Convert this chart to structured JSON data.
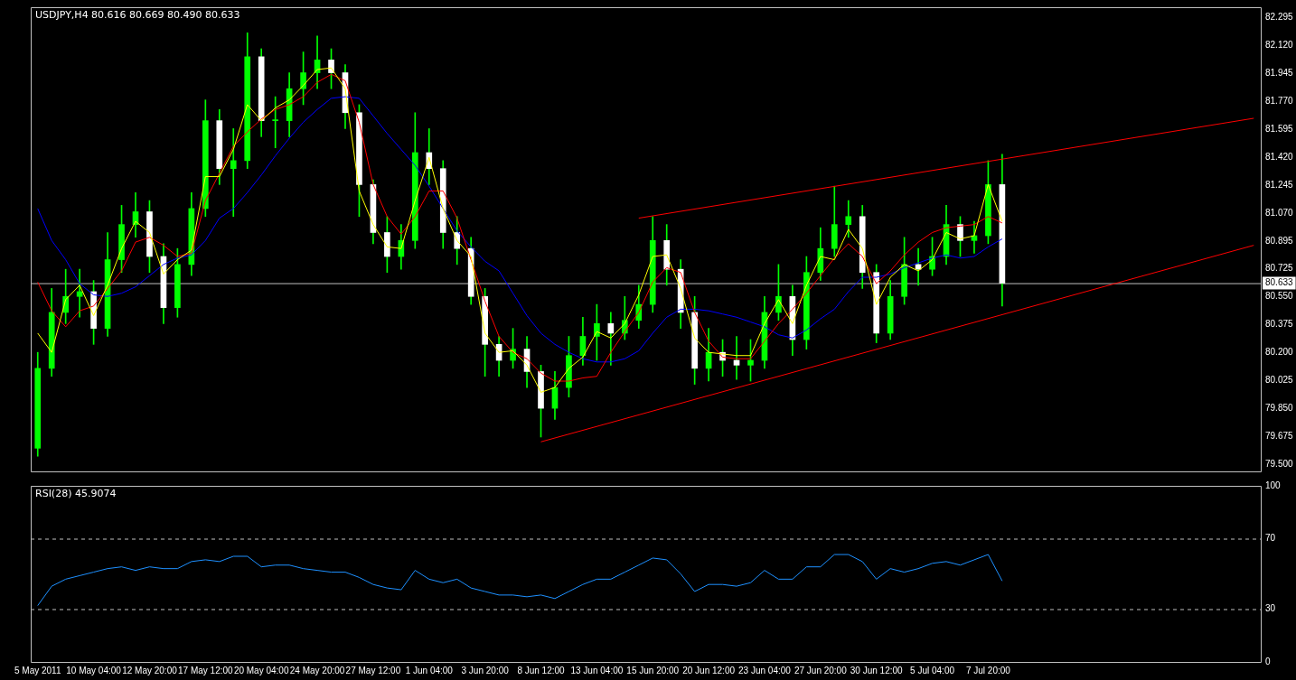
{
  "chart_data": [
    {
      "type": "candlestick",
      "title": "USDJPY,H4 80.616 80.669 80.490 80.633",
      "color": "#00ff00",
      "colors": [
        "#00ff00",
        "#00ff00",
        "#00ff00",
        "#00ff00",
        "#ffffff",
        "#00ff00",
        "#00ff00",
        "#00ff00",
        "#ffffff",
        "#ffffff",
        "#00ff00",
        "#00ff00",
        "#00ff00",
        "#ffffff",
        "#00ff00",
        "#00ff00",
        "#ffffff",
        "#00ff00",
        "#00ff00",
        "#00ff00",
        "#00ff00",
        "#ffffff",
        "#ffffff",
        "#ffffff",
        "#ffffff",
        "#ffffff",
        "#00ff00",
        "#00ff00",
        "#ffffff",
        "#ffffff",
        "#ffffff",
        "#ffffff",
        "#ffffff",
        "#ffffff",
        "#00ff00",
        "#ffffff",
        "#ffffff",
        "#00ff00",
        "#00ff00",
        "#00ff00",
        "#00ff00",
        "#ffffff",
        "#00ff00",
        "#00ff00",
        "#00ff00",
        "#ffffff",
        "#ffffff",
        "#ffffff",
        "#00ff00",
        "#ffffff",
        "#ffffff",
        "#00ff00",
        "#00ff00",
        "#00ff00",
        "#ffffff",
        "#00ff00",
        "#00ff00",
        "#00ff00",
        "#00ff00",
        "#ffffff",
        "#ffffff",
        "#00ff00",
        "#00ff00",
        "#ffffff",
        "#00ff00",
        "#00ff00",
        "#ffffff",
        "#00ff00",
        "#00ff00",
        "#ffffff",
        null,
        null,
        null,
        null,
        null,
        null,
        null,
        null,
        null,
        null,
        null,
        null,
        null,
        null,
        null,
        null,
        null,
        null
      ],
      "tick_labels": "y",
      "legend": false,
      "grid": false,
      "ylim": [
        79.455,
        82.36
      ],
      "yticks": [
        {
          "value": 79.5,
          "label": "79.500"
        },
        {
          "value": 79.675,
          "label": "79.675"
        },
        {
          "value": 79.85,
          "label": "79.850"
        },
        {
          "value": 80.025,
          "label": "80.025"
        },
        {
          "value": 80.2,
          "label": "80.200"
        },
        {
          "value": 80.375,
          "label": "80.375"
        },
        {
          "value": 80.55,
          "label": "80.550"
        },
        {
          "value": 80.725,
          "label": "80.725"
        },
        {
          "value": 80.895,
          "label": "80.895"
        },
        {
          "value": 81.07,
          "label": "81.070"
        },
        {
          "value": 81.245,
          "label": "81.245"
        },
        {
          "value": 81.42,
          "label": "81.420"
        },
        {
          "value": 81.595,
          "label": "81.595"
        },
        {
          "value": 81.77,
          "label": "81.770"
        },
        {
          "value": 81.945,
          "label": "81.945"
        },
        {
          "value": 82.12,
          "label": "82.120"
        },
        {
          "value": 82.295,
          "label": "82.295"
        }
      ],
      "categories": [
        null,
        null,
        null,
        null,
        null,
        null,
        null,
        null,
        null,
        null,
        null,
        null,
        null,
        null,
        null,
        null,
        null,
        null,
        null,
        null,
        null,
        null,
        null,
        null,
        null,
        null,
        null,
        null,
        null,
        null,
        null,
        null,
        null,
        null,
        null,
        null,
        null,
        null,
        null,
        null,
        null,
        null,
        null,
        null,
        null,
        null,
        null,
        null,
        null,
        null,
        null,
        null,
        null,
        null,
        null,
        null,
        null,
        null,
        null,
        null,
        null,
        null,
        null,
        null,
        null,
        null,
        null,
        null,
        null,
        null,
        null,
        null,
        null,
        null,
        null,
        null,
        null,
        null,
        null,
        null,
        null,
        null,
        null,
        null,
        null,
        null,
        null,
        null
      ],
      "ohlc": [
        [
          79.6,
          80.2,
          79.55,
          80.1
        ],
        [
          80.1,
          80.6,
          80.05,
          80.45
        ],
        [
          80.45,
          80.72,
          80.38,
          80.55
        ],
        [
          80.55,
          80.72,
          80.42,
          80.58
        ],
        [
          80.58,
          80.65,
          80.25,
          80.35
        ],
        [
          80.35,
          80.95,
          80.3,
          80.78
        ],
        [
          80.78,
          81.12,
          80.7,
          81.0
        ],
        [
          81.0,
          81.2,
          80.92,
          81.08
        ],
        [
          81.08,
          81.15,
          80.7,
          80.8
        ],
        [
          80.8,
          80.88,
          80.38,
          80.48
        ],
        [
          80.48,
          80.85,
          80.42,
          80.75
        ],
        [
          80.75,
          81.2,
          80.68,
          81.1
        ],
        [
          81.1,
          81.78,
          81.05,
          81.65
        ],
        [
          81.65,
          81.72,
          81.25,
          81.35
        ],
        [
          81.35,
          81.6,
          81.05,
          81.4
        ],
        [
          81.4,
          82.2,
          81.35,
          82.05
        ],
        [
          82.05,
          82.1,
          81.55,
          81.65
        ],
        [
          81.65,
          81.8,
          81.48,
          81.65
        ],
        [
          81.65,
          81.95,
          81.55,
          81.85
        ],
        [
          81.85,
          82.08,
          81.75,
          81.95
        ],
        [
          81.95,
          82.18,
          81.85,
          82.03
        ],
        [
          82.03,
          82.1,
          81.85,
          81.95
        ],
        [
          81.95,
          82.0,
          81.6,
          81.7
        ],
        [
          81.7,
          81.75,
          81.05,
          81.25
        ],
        [
          81.25,
          81.28,
          80.88,
          80.95
        ],
        [
          80.95,
          81.05,
          80.7,
          80.8
        ],
        [
          80.8,
          81.0,
          80.72,
          80.9
        ],
        [
          80.9,
          81.7,
          80.85,
          81.45
        ],
        [
          81.45,
          81.6,
          81.25,
          81.35
        ],
        [
          81.35,
          81.4,
          80.85,
          80.95
        ],
        [
          80.95,
          81.05,
          80.75,
          80.85
        ],
        [
          80.85,
          80.92,
          80.5,
          80.55
        ],
        [
          80.55,
          80.6,
          80.05,
          80.25
        ],
        [
          80.25,
          80.3,
          80.05,
          80.15
        ],
        [
          80.15,
          80.35,
          80.1,
          80.22
        ],
        [
          80.22,
          80.3,
          79.98,
          80.08
        ],
        [
          80.08,
          80.12,
          79.67,
          79.85
        ],
        [
          79.85,
          80.08,
          79.78,
          79.98
        ],
        [
          79.98,
          80.3,
          79.92,
          80.18
        ],
        [
          80.18,
          80.42,
          80.12,
          80.3
        ],
        [
          80.3,
          80.5,
          80.15,
          80.38
        ],
        [
          80.38,
          80.45,
          80.12,
          80.32
        ],
        [
          80.32,
          80.55,
          80.28,
          80.4
        ],
        [
          80.4,
          80.62,
          80.35,
          80.5
        ],
        [
          80.5,
          81.05,
          80.45,
          80.9
        ],
        [
          80.9,
          81.0,
          80.62,
          80.72
        ],
        [
          80.72,
          80.78,
          80.35,
          80.45
        ],
        [
          80.45,
          80.55,
          80.0,
          80.1
        ],
        [
          80.1,
          80.35,
          80.02,
          80.2
        ],
        [
          80.2,
          80.28,
          80.05,
          80.15
        ],
        [
          80.15,
          80.3,
          80.03,
          80.12
        ],
        [
          80.12,
          80.28,
          80.02,
          80.15
        ],
        [
          80.15,
          80.55,
          80.1,
          80.45
        ],
        [
          80.45,
          80.75,
          80.4,
          80.55
        ],
        [
          80.55,
          80.62,
          80.18,
          80.28
        ],
        [
          80.28,
          80.8,
          80.22,
          80.7
        ],
        [
          80.7,
          80.98,
          80.65,
          80.85
        ],
        [
          80.85,
          81.24,
          80.8,
          81.0
        ],
        [
          81.0,
          81.15,
          80.92,
          81.05
        ],
        [
          81.05,
          81.12,
          80.6,
          80.7
        ],
        [
          80.7,
          80.75,
          80.26,
          80.32
        ],
        [
          80.32,
          80.65,
          80.28,
          80.55
        ],
        [
          80.55,
          80.92,
          80.5,
          80.75
        ],
        [
          80.75,
          80.85,
          80.62,
          80.72
        ],
        [
          80.72,
          80.92,
          80.68,
          80.8
        ],
        [
          80.8,
          81.12,
          80.75,
          81.0
        ],
        [
          81.0,
          81.05,
          80.8,
          80.9
        ],
        [
          80.9,
          81.02,
          80.82,
          80.93
        ],
        [
          80.93,
          81.4,
          80.88,
          81.25
        ],
        [
          81.25,
          81.44,
          80.49,
          80.633
        ],
        null,
        null,
        null,
        null,
        null,
        null,
        null,
        null,
        null,
        null,
        null,
        null,
        null,
        null,
        null,
        null,
        null,
        null
      ],
      "series": [
        {
          "type": "line",
          "color": "#ffff00",
          "values": [
            80.32,
            80.2,
            80.53,
            80.62,
            80.43,
            80.62,
            80.85,
            81.02,
            80.95,
            80.69,
            80.78,
            80.84,
            81.3,
            81.3,
            81.47,
            81.75,
            81.65,
            81.73,
            81.78,
            81.87,
            81.97,
            81.98,
            81.85,
            81.21,
            81.0,
            80.86,
            80.85,
            81.15,
            81.42,
            81.1,
            80.9,
            80.8,
            80.32,
            80.2,
            80.21,
            80.12,
            79.95,
            79.98,
            80.1,
            80.17,
            80.33,
            80.29,
            80.38,
            80.56,
            80.8,
            80.81,
            80.6,
            80.29,
            80.2,
            80.19,
            80.18,
            80.18,
            80.38,
            80.53,
            80.38,
            80.62,
            80.8,
            80.78,
            80.97,
            80.85,
            80.5,
            80.67,
            80.75,
            80.71,
            80.78,
            80.95,
            80.91,
            80.93,
            81.25,
            81.02,
            null,
            null,
            null,
            null,
            null,
            null,
            null,
            null,
            null,
            null,
            null,
            null,
            null,
            null,
            null,
            null,
            null,
            null
          ]
        },
        {
          "type": "line",
          "color": "#ff0000",
          "values": [
            80.64,
            80.46,
            80.36,
            80.46,
            80.49,
            80.6,
            80.71,
            80.89,
            80.92,
            80.87,
            80.8,
            80.82,
            81.15,
            81.32,
            81.49,
            81.58,
            81.66,
            81.72,
            81.75,
            81.8,
            81.89,
            81.94,
            81.9,
            81.64,
            81.25,
            81.05,
            80.94,
            81.05,
            81.21,
            81.21,
            81.04,
            80.78,
            80.52,
            80.3,
            80.2,
            80.16,
            80.07,
            80.02,
            80.02,
            80.04,
            80.05,
            80.2,
            80.33,
            80.45,
            80.64,
            80.73,
            80.7,
            80.45,
            80.27,
            80.17,
            80.16,
            80.16,
            80.27,
            80.38,
            80.47,
            80.57,
            80.68,
            80.79,
            80.88,
            80.8,
            80.63,
            80.71,
            80.81,
            80.89,
            80.95,
            80.98,
            80.99,
            81.0,
            81.05,
            81.01,
            null,
            null,
            null,
            null,
            null,
            null,
            null,
            null,
            null,
            null,
            null,
            null,
            null,
            null,
            null,
            null,
            null,
            null
          ]
        },
        {
          "type": "line",
          "color": "#0000ff",
          "values": [
            81.1,
            80.9,
            80.78,
            80.63,
            80.56,
            80.55,
            80.57,
            80.61,
            80.68,
            80.75,
            80.79,
            80.81,
            80.9,
            81.04,
            81.1,
            81.2,
            81.31,
            81.43,
            81.54,
            81.64,
            81.72,
            81.79,
            81.8,
            81.79,
            81.68,
            81.57,
            81.47,
            81.37,
            81.24,
            81.1,
            80.96,
            80.86,
            80.77,
            80.71,
            80.57,
            80.43,
            80.32,
            80.25,
            80.2,
            80.16,
            80.14,
            80.14,
            80.16,
            80.21,
            80.32,
            80.42,
            80.47,
            80.47,
            80.46,
            80.44,
            80.42,
            80.39,
            80.36,
            80.31,
            80.29,
            80.34,
            80.41,
            80.47,
            80.58,
            80.67,
            80.67,
            80.69,
            80.73,
            80.76,
            80.79,
            80.81,
            80.79,
            80.8,
            80.86,
            80.91,
            null,
            null,
            null,
            null,
            null,
            null,
            null,
            null,
            null,
            null,
            null,
            null,
            null,
            null,
            null,
            null,
            null,
            null
          ]
        },
        {
          "type": "line",
          "color": "#ff0000",
          "values": [
            null,
            null,
            null,
            null,
            null,
            null,
            null,
            null,
            null,
            null,
            null,
            null,
            null,
            null,
            null,
            null,
            null,
            null,
            null,
            null,
            null,
            null,
            null,
            null,
            null,
            null,
            null,
            null,
            null,
            null,
            null,
            null,
            null,
            null,
            null,
            null,
            null,
            null,
            null,
            null,
            null,
            null,
            null,
            81.04,
            null,
            null,
            null,
            null,
            null,
            null,
            null,
            null,
            null,
            null,
            null,
            null,
            null,
            null,
            null,
            null,
            null,
            null,
            null,
            null,
            null,
            null,
            null,
            null,
            null,
            null,
            null,
            null,
            null,
            null,
            null,
            null,
            null,
            null,
            null,
            null,
            null,
            null,
            null,
            null,
            null,
            null,
            null,
            81.665
          ]
        },
        {
          "type": "line",
          "color": "#ff0000",
          "values": [
            null,
            null,
            null,
            null,
            null,
            null,
            null,
            null,
            null,
            null,
            null,
            null,
            null,
            null,
            null,
            null,
            null,
            null,
            null,
            null,
            null,
            null,
            null,
            null,
            null,
            null,
            null,
            null,
            null,
            null,
            null,
            null,
            null,
            null,
            null,
            null,
            79.64,
            null,
            null,
            null,
            null,
            null,
            null,
            null,
            null,
            null,
            null,
            null,
            null,
            null,
            null,
            null,
            null,
            null,
            null,
            null,
            null,
            null,
            null,
            null,
            null,
            null,
            null,
            null,
            null,
            null,
            null,
            null,
            null,
            null,
            null,
            null,
            null,
            null,
            null,
            null,
            null,
            null,
            null,
            null,
            null,
            null,
            null,
            null,
            null,
            null,
            null,
            80.87
          ]
        }
      ],
      "ref_lines": [
        {
          "axis": "y",
          "value": 80.633,
          "label": "80.633",
          "color": "#c0c0c0"
        }
      ]
    },
    {
      "type": "line",
      "title": "RSI(28) 45.9074",
      "legend": false,
      "grid": false,
      "ylim": [
        0,
        100
      ],
      "yticks": [
        0,
        30,
        70,
        100
      ],
      "categories": [
        "5 May 2011",
        null,
        null,
        null,
        "10 May 04:00",
        null,
        null,
        null,
        "12 May 20:00",
        null,
        null,
        null,
        "17 May 12:00",
        null,
        null,
        null,
        "20 May 04:00",
        null,
        null,
        null,
        "24 May 20:00",
        null,
        null,
        null,
        "27 May 12:00",
        null,
        null,
        null,
        "1 Jun 04:00",
        null,
        null,
        null,
        "3 Jun 20:00",
        null,
        null,
        null,
        "8 Jun 12:00",
        null,
        null,
        null,
        "13 Jun 04:00",
        null,
        null,
        null,
        "15 Jun 20:00",
        null,
        null,
        null,
        "20 Jun 12:00",
        null,
        null,
        null,
        "23 Jun 04:00",
        null,
        null,
        null,
        "27 Jun 20:00",
        null,
        null,
        null,
        "30 Jun 12:00",
        null,
        null,
        null,
        "5 Jul 04:00",
        null,
        null,
        null,
        "7 Jul 20:00",
        null,
        null,
        null,
        null,
        null,
        null,
        null,
        null,
        null,
        null,
        null,
        null,
        null,
        null,
        null,
        null,
        null,
        null,
        null
      ],
      "series": [
        {
          "color": "#1e90ff",
          "values": [
            32,
            43,
            47,
            49,
            51,
            53,
            54,
            52,
            54,
            53,
            53,
            57,
            58,
            57,
            60,
            60,
            54,
            55,
            55,
            53,
            52,
            51,
            51,
            48,
            44,
            42,
            41,
            52,
            47,
            45,
            47,
            42,
            40,
            38,
            38,
            37,
            38,
            36,
            40,
            44,
            47,
            47,
            51,
            55,
            59,
            58,
            50,
            40,
            44,
            44,
            43,
            45,
            52,
            47,
            47,
            54,
            54,
            61,
            61,
            57,
            47,
            53,
            51,
            53,
            56,
            57,
            55,
            58,
            61,
            46,
            null,
            null,
            null,
            null,
            null,
            null,
            null,
            null,
            null,
            null,
            null,
            null,
            null,
            null,
            null,
            null,
            null,
            null
          ]
        }
      ],
      "ref_lines": [
        {
          "axis": "y",
          "value": 30,
          "color": "#c0c0c0",
          "line_style": "dashed"
        },
        {
          "axis": "y",
          "value": 70,
          "color": "#c0c0c0",
          "line_style": "dashed"
        }
      ]
    }
  ]
}
